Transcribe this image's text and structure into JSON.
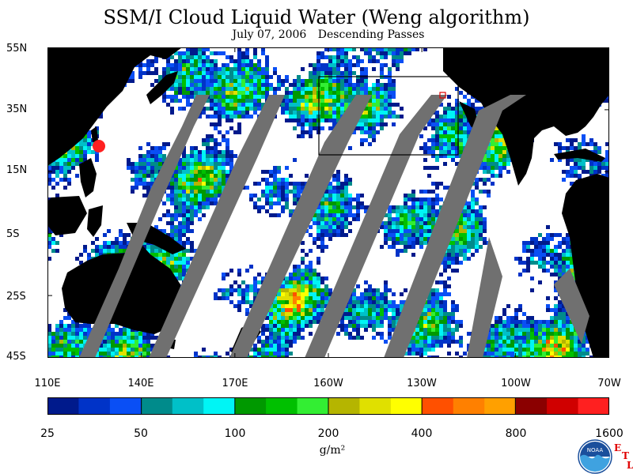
{
  "title": "SSM/I Cloud Liquid Water (Weng algorithm)",
  "subtitle_date": "July 07, 2006",
  "subtitle_passes": "Descending Passes",
  "lat_labels": [
    "55N",
    "35N",
    "15N",
    "5S",
    "25S",
    "45S"
  ],
  "lon_labels": [
    "110E",
    "140E",
    "170E",
    "160W",
    "130W",
    "100W",
    "70W"
  ],
  "colorbar": {
    "tick_labels": [
      "25",
      "50",
      "100",
      "200",
      "400",
      "800",
      "1600"
    ],
    "units": "g/m²",
    "colors": [
      "#001a8c",
      "#0033c8",
      "#0a4ff5",
      "#008b8b",
      "#00c0c8",
      "#00f5f5",
      "#009900",
      "#00c000",
      "#33ee33",
      "#b5b500",
      "#e0e000",
      "#ffff00",
      "#ff5000",
      "#ff8000",
      "#ffa000",
      "#8b0000",
      "#d00000",
      "#ff2020"
    ]
  },
  "logo": {
    "text": "NOAA",
    "etl_letters": [
      "E",
      "T",
      "L"
    ]
  },
  "map_colors": {
    "land": "#000000",
    "no_data_swath_gap": "#707070",
    "clear_sky": "#ffffff"
  }
}
